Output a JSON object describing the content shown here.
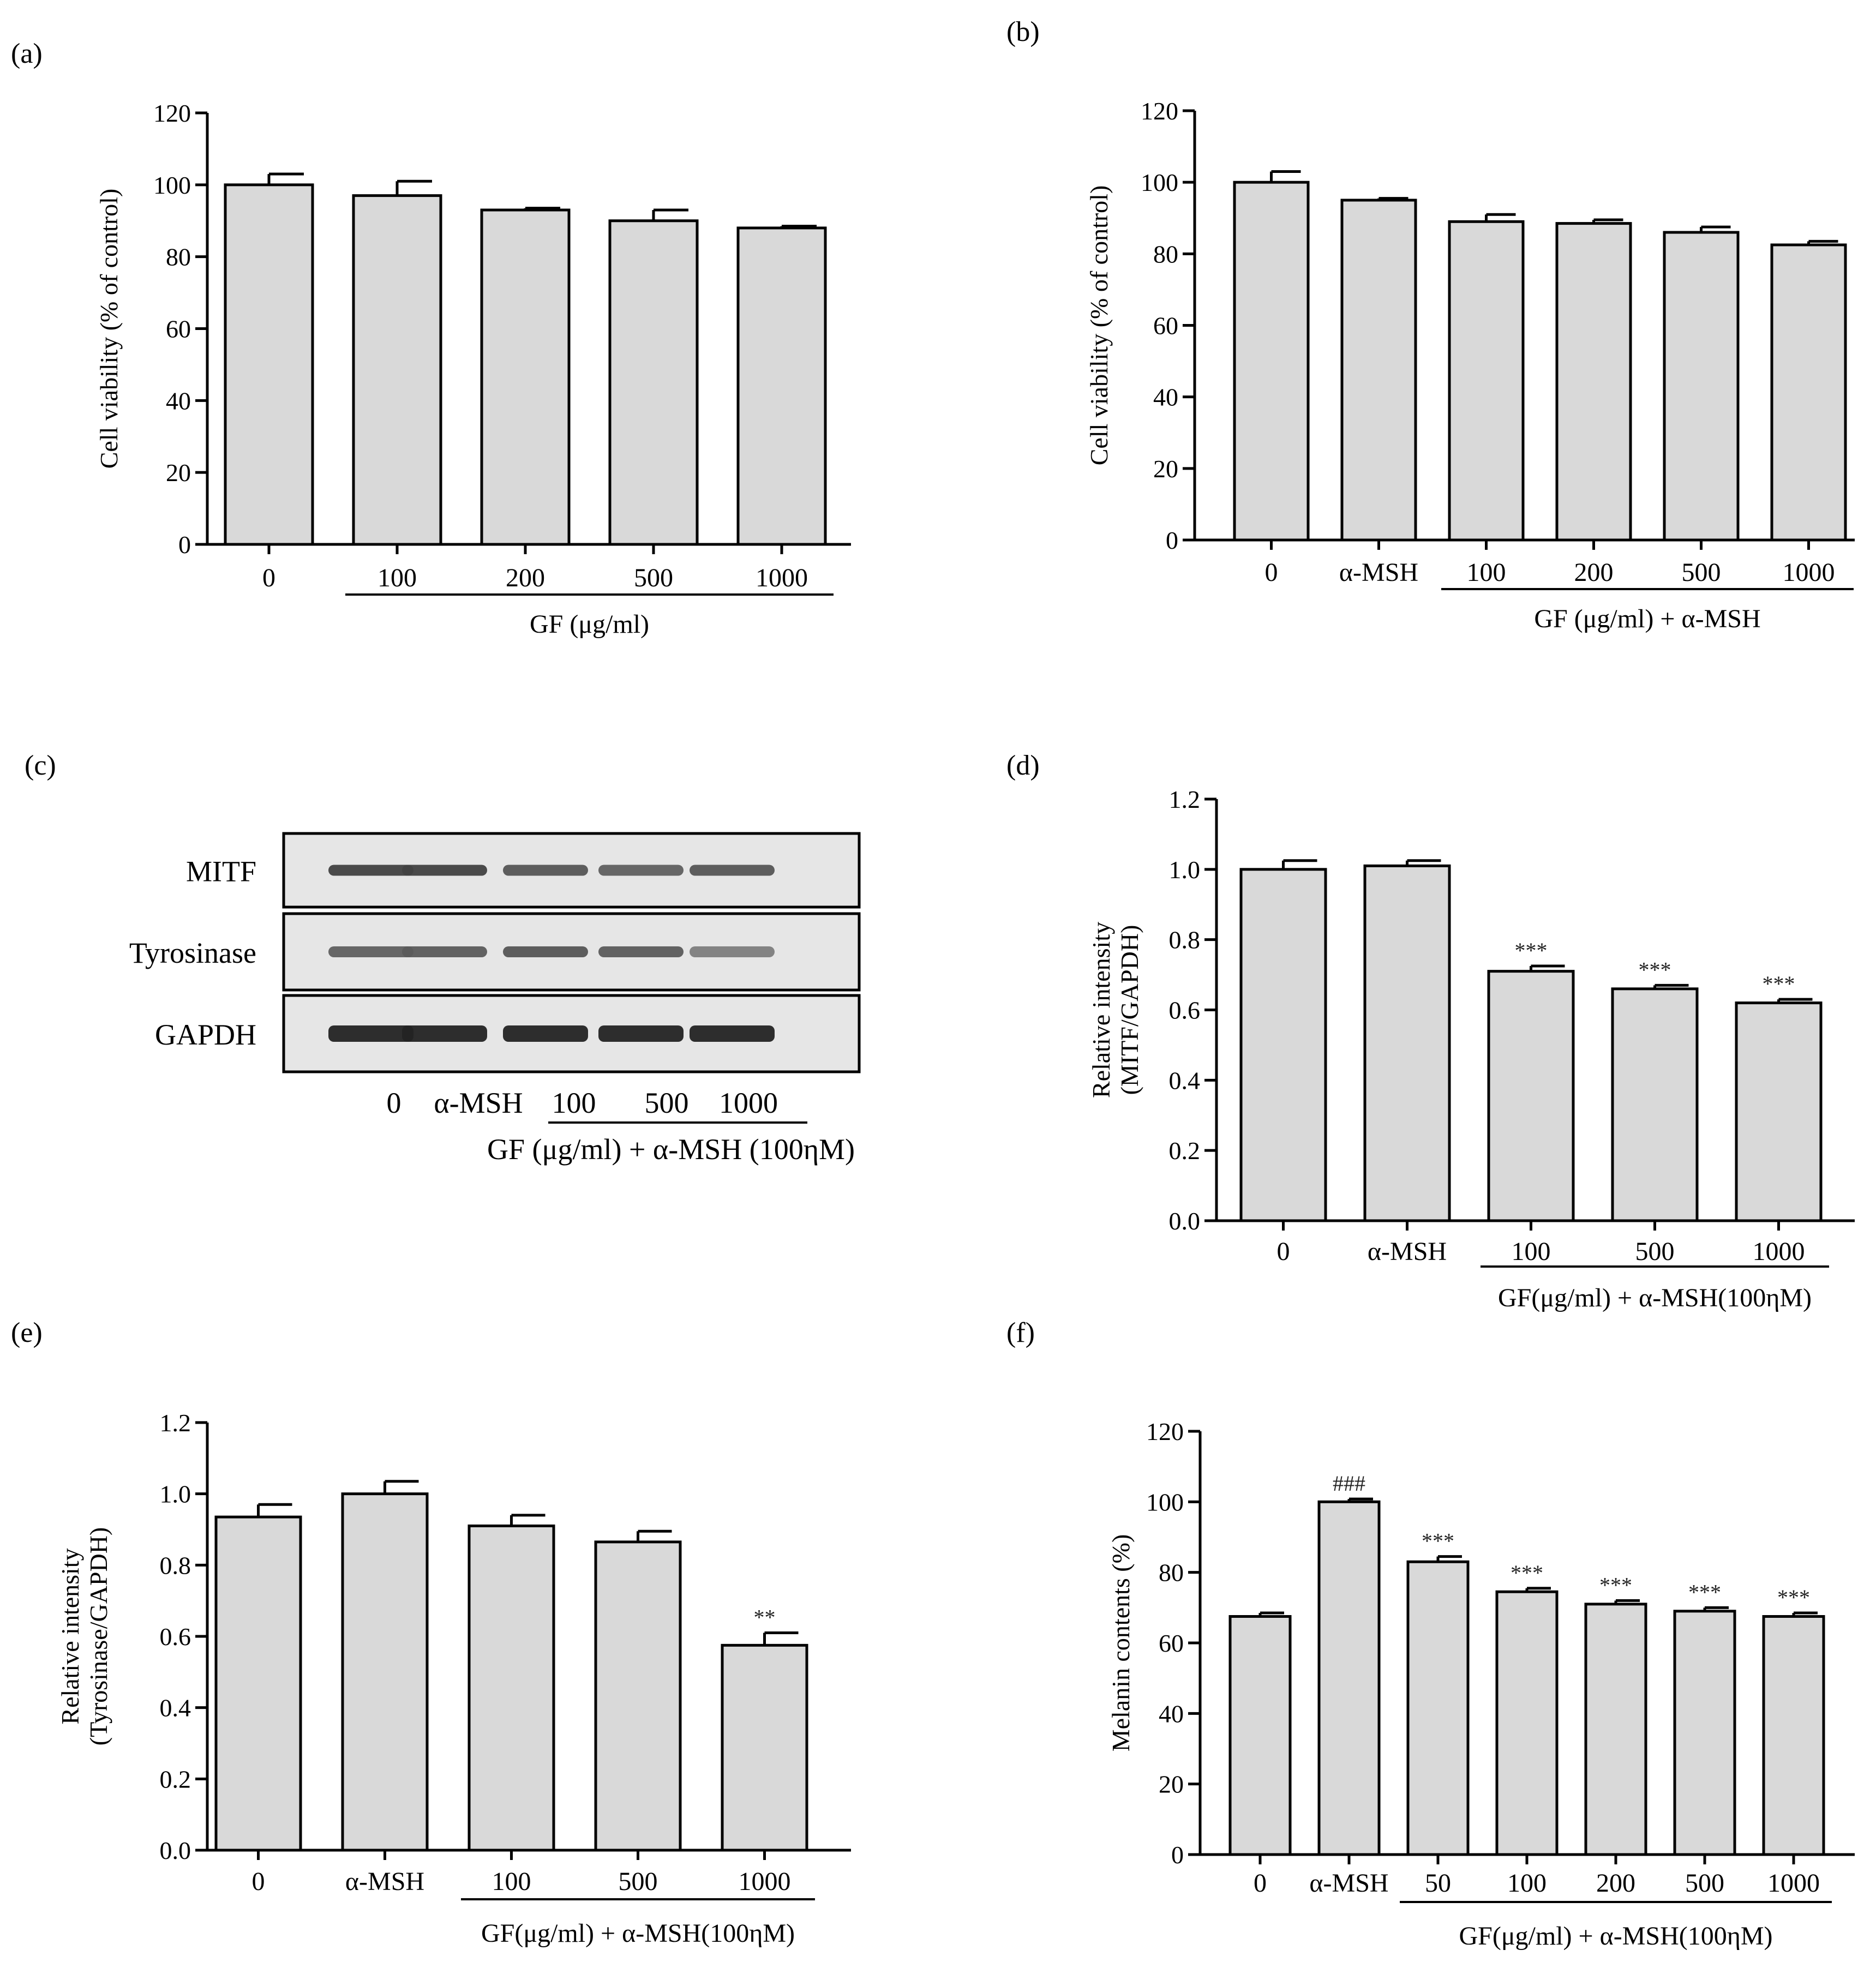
{
  "chart_data": [
    {
      "panel": "(a)",
      "type": "bar",
      "categories": [
        "0",
        "100",
        "200",
        "500",
        "1000"
      ],
      "values": [
        100,
        97,
        93,
        90,
        88
      ],
      "errors": [
        3,
        4,
        0.5,
        3,
        0.5
      ],
      "annotations": [
        "",
        "",
        "",
        "",
        ""
      ],
      "ylabel": [
        "Cell viability (% of control)"
      ],
      "ylim": [
        0,
        120
      ],
      "yticks": [
        "0",
        "20",
        "40",
        "60",
        "80",
        "100",
        "120"
      ],
      "group_label": "GF (μg/ml)",
      "group_range": [
        1,
        4
      ]
    },
    {
      "panel": "(b)",
      "type": "bar",
      "categories": [
        "0",
        "α-MSH",
        "100",
        "200",
        "500",
        "1000"
      ],
      "values": [
        100,
        95,
        89,
        88.5,
        86,
        82.5
      ],
      "errors": [
        3,
        0.5,
        2,
        1,
        1.5,
        1
      ],
      "annotations": [
        "",
        "",
        "",
        "",
        "",
        ""
      ],
      "ylabel": [
        "Cell viability (% of control)"
      ],
      "ylim": [
        0,
        120
      ],
      "yticks": [
        "0",
        "20",
        "40",
        "60",
        "80",
        "100",
        "120"
      ],
      "group_label": "GF (μg/ml) + α-MSH",
      "group_range": [
        2,
        5
      ]
    },
    {
      "panel": "(d)",
      "type": "bar",
      "categories": [
        "0",
        "α-MSH",
        "100",
        "500",
        "1000"
      ],
      "values": [
        1.0,
        1.01,
        0.71,
        0.66,
        0.62
      ],
      "errors": [
        0.025,
        0.015,
        0.015,
        0.01,
        0.01
      ],
      "annotations": [
        "",
        "",
        "***",
        "***",
        "***"
      ],
      "ylabel": [
        "Relative intensity",
        "(MITF/GAPDH)"
      ],
      "ylim": [
        0,
        1.2
      ],
      "yticks": [
        "0.0",
        "0.2",
        "0.4",
        "0.6",
        "0.8",
        "1.0",
        "1.2"
      ],
      "group_label": "GF(μg/ml) + α-MSH(100ηM)",
      "group_range": [
        2,
        4
      ]
    },
    {
      "panel": "(e)",
      "type": "bar",
      "categories": [
        "0",
        "α-MSH",
        "100",
        "500",
        "1000"
      ],
      "values": [
        0.935,
        1.0,
        0.91,
        0.865,
        0.575
      ],
      "errors": [
        0.035,
        0.035,
        0.03,
        0.03,
        0.035
      ],
      "annotations": [
        "",
        "",
        "",
        "",
        "**"
      ],
      "ylabel": [
        "Relative intensity",
        "(Tyrosinase/GAPDH)"
      ],
      "ylim": [
        0,
        1.2
      ],
      "yticks": [
        "0.0",
        "0.2",
        "0.4",
        "0.6",
        "0.8",
        "1.0",
        "1.2"
      ],
      "group_label": "GF(μg/ml) + α-MSH(100ηM)",
      "group_range": [
        2,
        4
      ]
    },
    {
      "panel": "(f)",
      "type": "bar",
      "categories": [
        "0",
        "α-MSH",
        "50",
        "100",
        "200",
        "500",
        "1000"
      ],
      "values": [
        67.5,
        100,
        83,
        74.5,
        71,
        69,
        67.5
      ],
      "errors": [
        1,
        0.8,
        1.5,
        1,
        1,
        1,
        1
      ],
      "annotations": [
        "",
        "###",
        "***",
        "***",
        "***",
        "***",
        "***"
      ],
      "ylabel": [
        "Melanin contents (%)"
      ],
      "ylim": [
        0,
        120
      ],
      "yticks": [
        "0",
        "20",
        "40",
        "60",
        "80",
        "100",
        "120"
      ],
      "group_label": "GF(μg/ml) + α-MSH(100ηM)",
      "group_range": [
        2,
        6
      ]
    }
  ],
  "blot": {
    "panel": "(c)",
    "rows": [
      "MITF",
      "Tyrosinase",
      "GAPDH"
    ],
    "lanes": [
      "0",
      "α-MSH",
      "100",
      "500",
      "1000"
    ],
    "group_label": "GF (μg/ml) + α-MSH (100ηM)",
    "band_intensity": [
      [
        0.85,
        0.85,
        0.75,
        0.7,
        0.75
      ],
      [
        0.7,
        0.72,
        0.75,
        0.72,
        0.55
      ],
      [
        1.0,
        1.0,
        1.0,
        1.0,
        1.0
      ]
    ]
  }
}
